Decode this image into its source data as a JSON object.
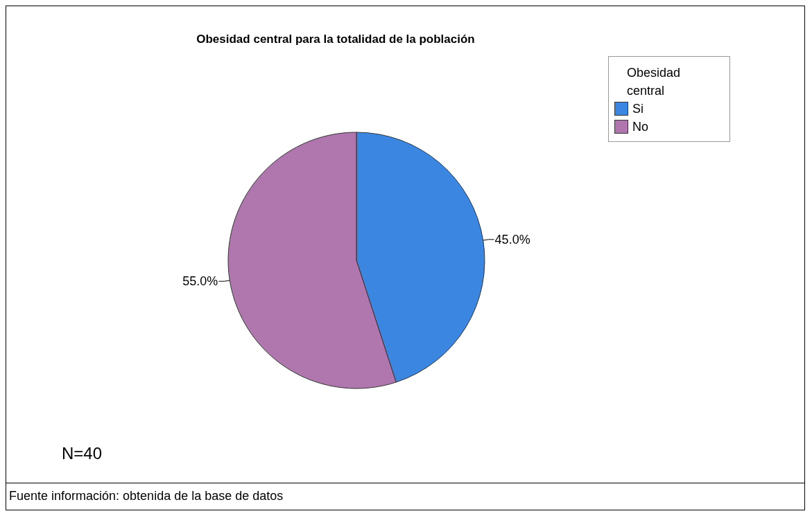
{
  "chart_data": {
    "type": "pie",
    "title": "Obesidad central para la totalidad de la población",
    "legend_title": "Obesidad central",
    "legend": "top right",
    "categories": [
      "Si",
      "No"
    ],
    "values": [
      45,
      55
    ],
    "value_labels": [
      "45.0%",
      "55.0%"
    ],
    "colors": [
      "#3a86e0",
      "#b077ae"
    ],
    "annotations": [
      "N=40",
      "Fuente información: obtenida de la base de datos"
    ]
  }
}
